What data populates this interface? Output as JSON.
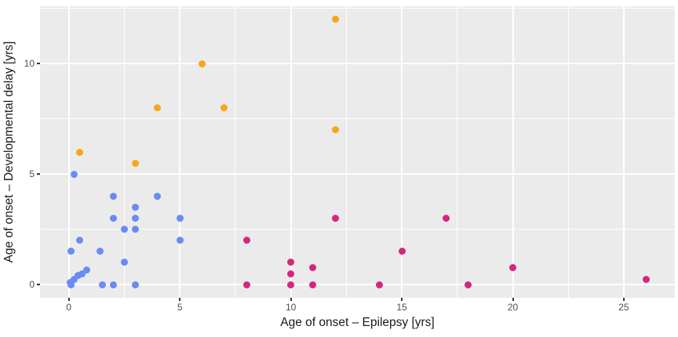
{
  "chart_data": {
    "type": "scatter",
    "title": "",
    "xlabel": "Age of onset – Epilepsy [yrs]",
    "ylabel": "Age of onset – Developmental delay [yrs]",
    "xlim": [
      -1.3,
      27.3
    ],
    "ylim": [
      -0.6,
      12.6
    ],
    "x_ticks": [
      0,
      5,
      10,
      15,
      20,
      25
    ],
    "y_ticks": [
      0,
      5,
      10
    ],
    "x_minor_gridlines": [
      2.5,
      7.5,
      12.5,
      17.5,
      22.5
    ],
    "y_minor_gridlines": [
      2.5,
      7.5,
      12.5
    ],
    "grid": "on",
    "legend_position": "none",
    "panel_bg_color": "#EBEBEB",
    "gridline_color": "#FFFFFF",
    "tick_label_color": "#4D4D4D",
    "axis_title_color": "#1A1A1A",
    "series": [
      {
        "name": "blue-group",
        "color": "#6A8BF2",
        "points": [
          [
            0.05,
            0.1
          ],
          [
            0.1,
            0
          ],
          [
            0.25,
            0.25
          ],
          [
            0.4,
            0.4
          ],
          [
            0.6,
            0.5
          ],
          [
            0.8,
            0.65
          ],
          [
            0.1,
            1.5
          ],
          [
            1.4,
            1.5
          ],
          [
            0.25,
            5
          ],
          [
            0.5,
            2
          ],
          [
            1.5,
            0
          ],
          [
            2,
            0
          ],
          [
            3,
            0
          ],
          [
            2.5,
            1
          ],
          [
            2,
            3
          ],
          [
            2,
            4
          ],
          [
            2.5,
            2.5
          ],
          [
            3,
            2.5
          ],
          [
            3,
            3
          ],
          [
            3,
            3.5
          ],
          [
            4,
            4
          ],
          [
            5,
            2
          ],
          [
            5,
            3
          ]
        ]
      },
      {
        "name": "orange-group",
        "color": "#F7A61C",
        "points": [
          [
            0.5,
            6
          ],
          [
            3,
            5.5
          ],
          [
            4,
            8
          ],
          [
            6,
            10
          ],
          [
            7,
            8
          ],
          [
            12,
            7
          ],
          [
            12,
            12
          ]
        ]
      },
      {
        "name": "pink-group",
        "color": "#D62580",
        "points": [
          [
            8,
            0
          ],
          [
            8,
            2
          ],
          [
            10,
            0
          ],
          [
            10,
            0.5
          ],
          [
            10,
            1
          ],
          [
            11,
            0
          ],
          [
            11,
            0.75
          ],
          [
            12,
            3
          ],
          [
            14,
            0
          ],
          [
            15,
            1.5
          ],
          [
            17,
            3
          ],
          [
            18,
            0
          ],
          [
            20,
            0.75
          ],
          [
            26,
            0.25
          ]
        ]
      }
    ]
  }
}
